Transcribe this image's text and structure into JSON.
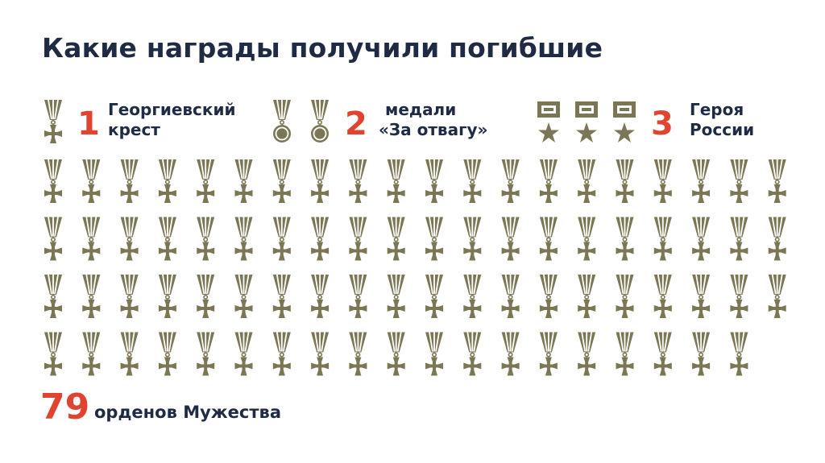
{
  "title": "Какие награды получили погибшие",
  "colors": {
    "icon": "#7b7755",
    "accent": "#e0432f",
    "text": "#1f2a44"
  },
  "chart_data": {
    "type": "pictogram",
    "categories": [
      {
        "name": "Георгиевский крест",
        "count": 1,
        "label_lines": [
          "Георгиевский",
          "крест"
        ],
        "icon": "georgievsky-cross-icon"
      },
      {
        "name": "медали «За отвагу»",
        "count": 2,
        "label_lines": [
          "медали",
          "«За отвагу»"
        ],
        "icon": "medal-icon"
      },
      {
        "name": "Героя России",
        "count": 3,
        "label_lines": [
          "Героя",
          "России"
        ],
        "icon": "hero-star-icon"
      },
      {
        "name": "орденов Мужества",
        "count": 79,
        "label": "орденов Мужества",
        "icon": "order-of-courage-icon"
      }
    ]
  }
}
